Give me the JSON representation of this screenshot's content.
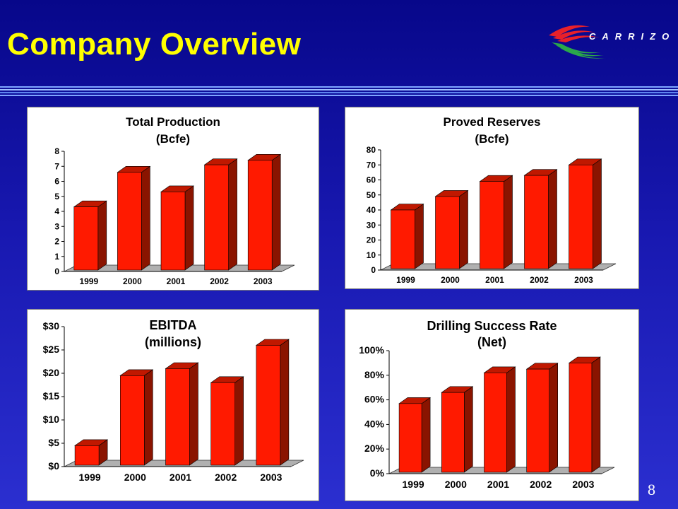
{
  "slide": {
    "title": "Company Overview",
    "logo_text": "CARRIZO",
    "page_number": "8"
  },
  "colors": {
    "background_top": "#07078a",
    "background_bottom": "#2b2fd0",
    "title": "#ffff00",
    "bar_front": "#ff1a00",
    "bar_side": "#8a1400",
    "bar_top": "#c01800",
    "floor": "#b0b0b0"
  },
  "chart_data": [
    {
      "type": "bar",
      "title": "Total Production",
      "subtitle": "(Bcfe)",
      "categories": [
        "1999",
        "2000",
        "2001",
        "2002",
        "2003"
      ],
      "values": [
        4.3,
        6.6,
        5.3,
        7.1,
        7.4
      ],
      "ylim": [
        0,
        8
      ],
      "yticks": [
        0,
        1,
        2,
        3,
        4,
        5,
        6,
        7,
        8
      ],
      "ytick_labels": [
        "0",
        "1",
        "2",
        "3",
        "4",
        "5",
        "6",
        "7",
        "8"
      ],
      "grid": false
    },
    {
      "type": "bar",
      "title": "Proved Reserves",
      "subtitle": "(Bcfe)",
      "categories": [
        "1999",
        "2000",
        "2001",
        "2002",
        "2003"
      ],
      "values": [
        40,
        49,
        59,
        63,
        70
      ],
      "ylim": [
        0,
        80
      ],
      "yticks": [
        0,
        10,
        20,
        30,
        40,
        50,
        60,
        70,
        80
      ],
      "ytick_labels": [
        "0",
        "10",
        "20",
        "30",
        "40",
        "50",
        "60",
        "70",
        "80"
      ],
      "grid": false
    },
    {
      "type": "bar",
      "title": "EBITDA",
      "subtitle": "(millions)",
      "categories": [
        "1999",
        "2000",
        "2001",
        "2002",
        "2003"
      ],
      "values": [
        4.5,
        19.5,
        21,
        18,
        26
      ],
      "ylim": [
        0,
        30
      ],
      "yticks": [
        0,
        5,
        10,
        15,
        20,
        25,
        30
      ],
      "ytick_labels": [
        "$0",
        "$5",
        "$10",
        "$15",
        "$20",
        "$25",
        "$30"
      ],
      "grid": false
    },
    {
      "type": "bar",
      "title": "Drilling Success Rate",
      "subtitle": "(Net)",
      "categories": [
        "1999",
        "2000",
        "2001",
        "2002",
        "2003"
      ],
      "values": [
        57,
        66,
        82,
        85,
        90
      ],
      "ylim": [
        0,
        100
      ],
      "yticks": [
        0,
        20,
        40,
        60,
        80,
        100
      ],
      "ytick_labels": [
        "0%",
        "20%",
        "40%",
        "60%",
        "80%",
        "100%"
      ],
      "grid": false
    }
  ]
}
